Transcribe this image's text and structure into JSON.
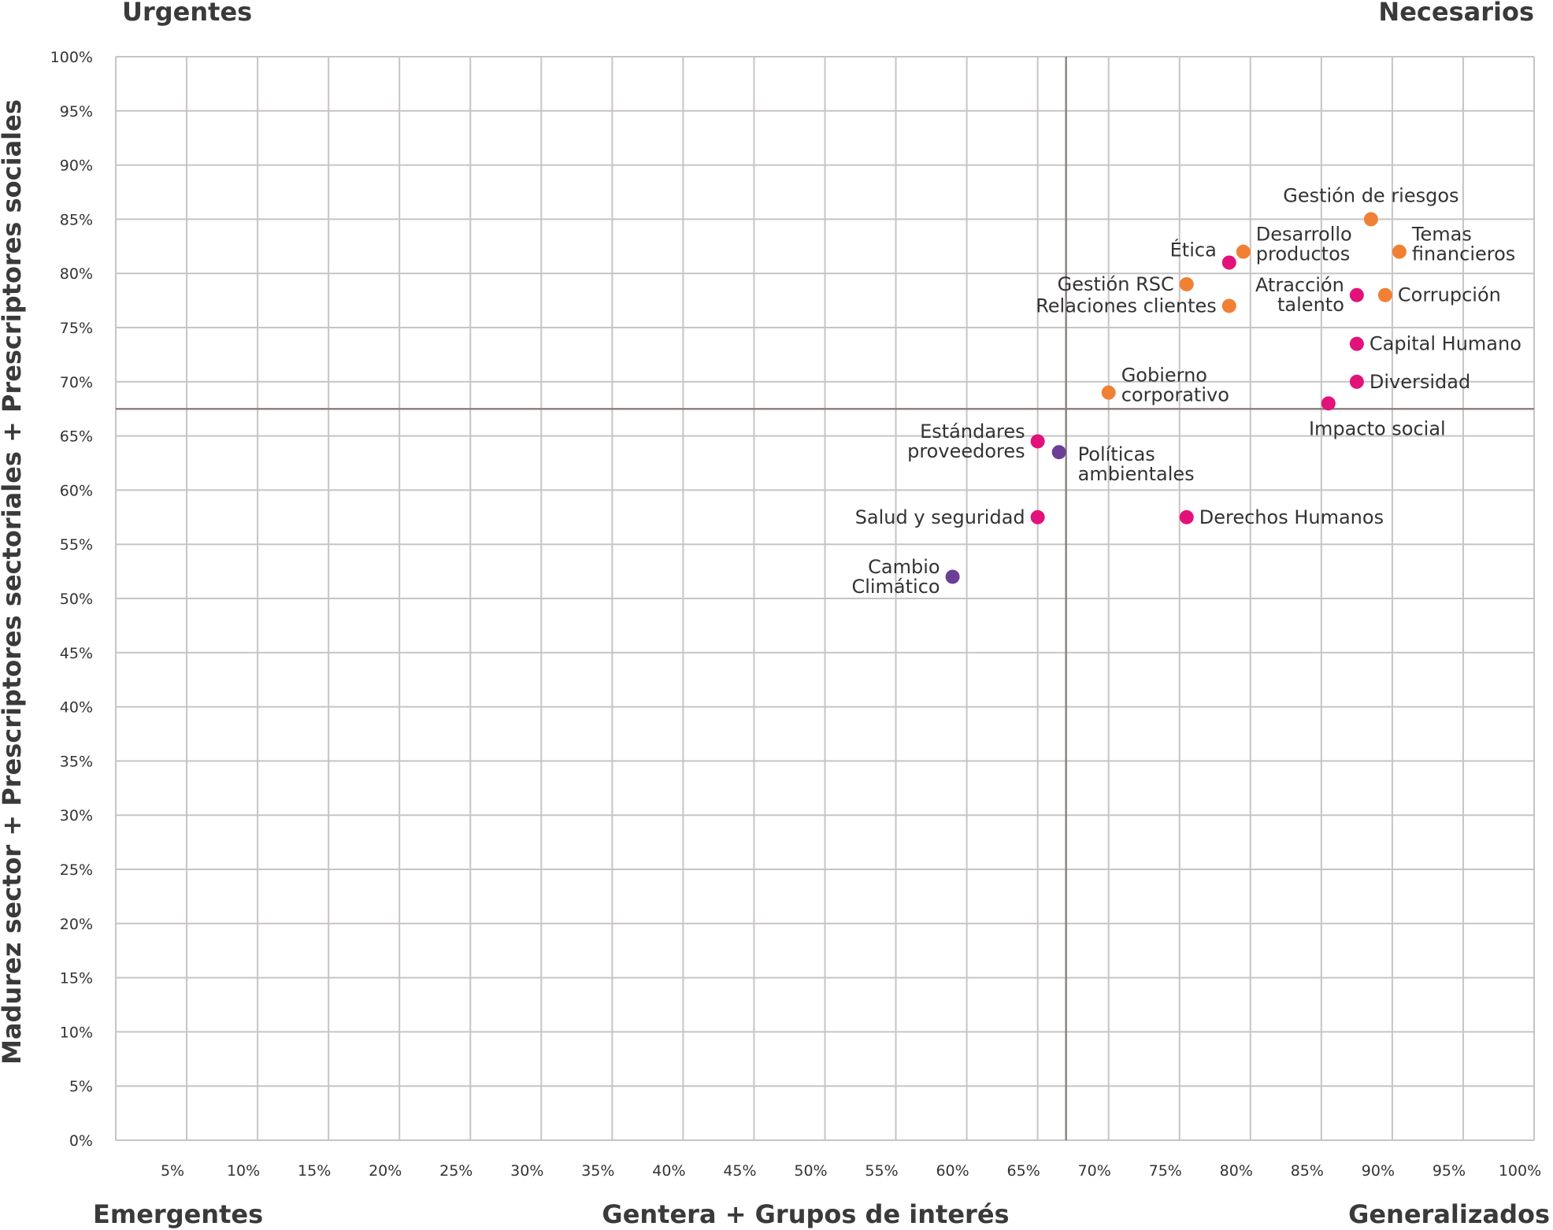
{
  "quadrants": {
    "top_left": "Urgentes",
    "top_right": "Necesarios",
    "bottom_left": "Emergentes",
    "bottom_right": "Generalizados"
  },
  "colors": {
    "orange": "#f08033",
    "magenta": "#e2127a",
    "purple": "#6b3f96",
    "grid": "#c8c4c4",
    "divider": "#8e8481"
  },
  "chart_data": {
    "type": "scatter",
    "xlabel": "Gentera + Grupos de interés",
    "ylabel": "Madurez sector + Prescriptores sectoriales + Prescriptores sociales",
    "xlim": [
      0,
      100
    ],
    "ylim": [
      0,
      100
    ],
    "x_ticks": [
      "5%",
      "10%",
      "15%",
      "20%",
      "25%",
      "30%",
      "35%",
      "40%",
      "45%",
      "50%",
      "55%",
      "60%",
      "65%",
      "70%",
      "75%",
      "80%",
      "85%",
      "90%",
      "95%",
      "100%"
    ],
    "y_ticks": [
      "0%",
      "5%",
      "10%",
      "15%",
      "20%",
      "25%",
      "30%",
      "35%",
      "40%",
      "45%",
      "50%",
      "55%",
      "60%",
      "65%",
      "70%",
      "75%",
      "80%",
      "85%",
      "90%",
      "95%",
      "100%"
    ],
    "grid": true,
    "divider": {
      "x": 67,
      "y": 67.5
    },
    "points": [
      {
        "label": [
          "Gestión de riesgos"
        ],
        "x": 88.5,
        "y": 85,
        "color": "orange",
        "anchor": "above"
      },
      {
        "label": [
          "Temas",
          "financieros"
        ],
        "x": 90.5,
        "y": 82,
        "color": "orange",
        "anchor": "right-up"
      },
      {
        "label": [
          "Desarrollo",
          "productos"
        ],
        "x": 79.5,
        "y": 82,
        "color": "orange",
        "anchor": "right-up"
      },
      {
        "label": [
          "Ética"
        ],
        "x": 78.5,
        "y": 81,
        "color": "magenta",
        "anchor": "left-up"
      },
      {
        "label": [
          "Gestión RSC"
        ],
        "x": 75.5,
        "y": 79,
        "color": "orange",
        "anchor": "left"
      },
      {
        "label": [
          "Atracción",
          "talento"
        ],
        "x": 87.5,
        "y": 78,
        "color": "magenta",
        "anchor": "left"
      },
      {
        "label": [
          "Corrupción"
        ],
        "x": 89.5,
        "y": 78,
        "color": "orange",
        "anchor": "right"
      },
      {
        "label": [
          "Relaciones clientes"
        ],
        "x": 78.5,
        "y": 77,
        "color": "orange",
        "anchor": "left"
      },
      {
        "label": [
          "Capital Humano"
        ],
        "x": 87.5,
        "y": 73.5,
        "color": "magenta",
        "anchor": "right"
      },
      {
        "label": [
          "Diversidad"
        ],
        "x": 87.5,
        "y": 70,
        "color": "magenta",
        "anchor": "right"
      },
      {
        "label": [
          "Gobierno",
          "corporativo"
        ],
        "x": 70,
        "y": 69,
        "color": "orange",
        "anchor": "right-up"
      },
      {
        "label": [
          "Impacto social"
        ],
        "x": 85.5,
        "y": 68,
        "color": "magenta",
        "anchor": "below"
      },
      {
        "label": [
          "Estándares",
          "proveedores"
        ],
        "x": 65,
        "y": 64.5,
        "color": "magenta",
        "anchor": "left"
      },
      {
        "label": [
          "Políticas",
          "ambientales"
        ],
        "x": 66.5,
        "y": 63.5,
        "color": "purple",
        "anchor": "right-down"
      },
      {
        "label": [
          "Salud y seguridad"
        ],
        "x": 65,
        "y": 57.5,
        "color": "magenta",
        "anchor": "left"
      },
      {
        "label": [
          "Derechos Humanos"
        ],
        "x": 75.5,
        "y": 57.5,
        "color": "magenta",
        "anchor": "right"
      },
      {
        "label": [
          "Cambio",
          "Climático"
        ],
        "x": 59,
        "y": 52,
        "color": "purple",
        "anchor": "left"
      }
    ]
  }
}
